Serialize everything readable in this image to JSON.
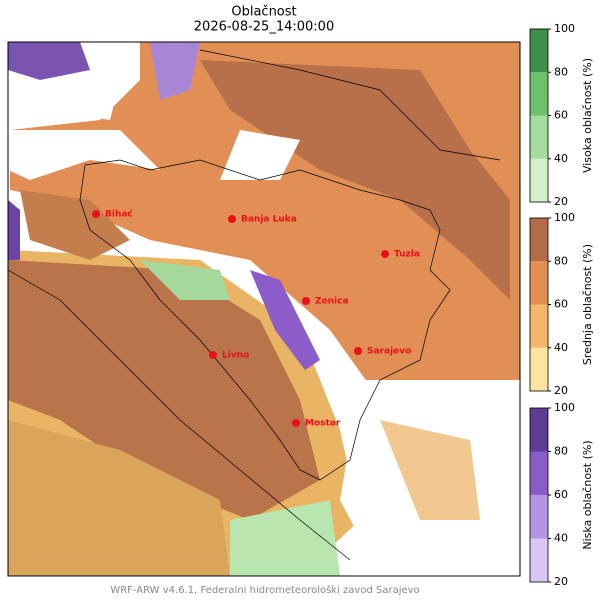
{
  "title": "Oblačnost",
  "subtitle": "2026-08-25_14:00:00",
  "cities": [
    {
      "name": "Bihać"
    },
    {
      "name": "Banja Luka"
    },
    {
      "name": "Tuzla"
    },
    {
      "name": "Zenica"
    },
    {
      "name": "Livno"
    },
    {
      "name": "Sarajevo"
    },
    {
      "name": "Mostar"
    }
  ],
  "colorbars": [
    {
      "label": "Visoka oblačnost (%)",
      "ticks": [
        20,
        40,
        60,
        80,
        100
      ],
      "colors": [
        "#d2f0cc",
        "#a3dc9d",
        "#6cc26a",
        "#3f9048"
      ]
    },
    {
      "label": "Srednja oblačnost (%)",
      "ticks": [
        20,
        40,
        60,
        80,
        100
      ],
      "colors": [
        "#fde3a0",
        "#f6b868",
        "#e48f52",
        "#b56b47"
      ]
    },
    {
      "label": "Niska oblačnost (%)",
      "ticks": [
        20,
        40,
        60,
        80,
        100
      ],
      "colors": [
        "#dac6f2",
        "#b494e4",
        "#8a5cc8",
        "#5d3b96"
      ]
    }
  ],
  "footer": "WRF-ARW v4.6.1, Federalni hidrometeorološki zavod Sarajevo"
}
